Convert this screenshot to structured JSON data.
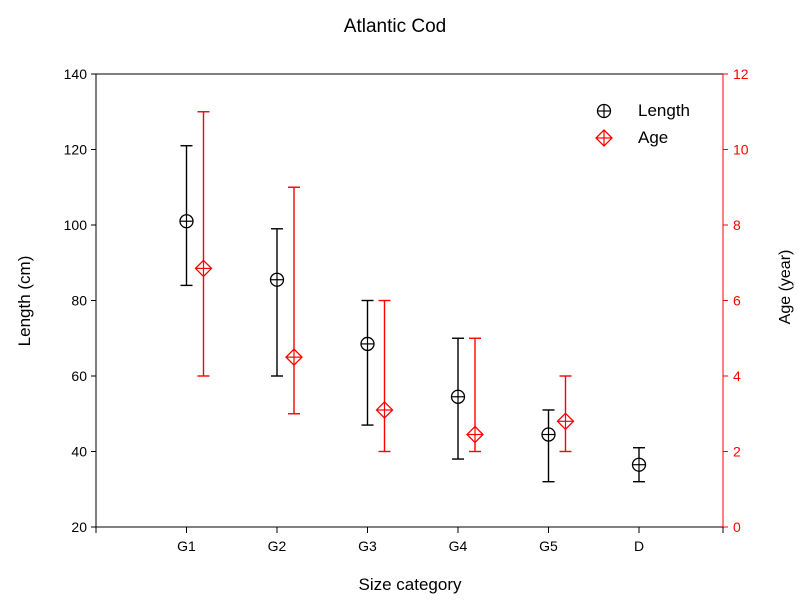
{
  "chart_data": {
    "type": "scatter",
    "title": "Atlantic Cod",
    "xlabel": "Size category",
    "ylabel": "Length (cm)",
    "y2label": "Age (year)",
    "categories": [
      "G1",
      "G2",
      "G3",
      "G4",
      "G5",
      "D"
    ],
    "ylim": [
      20,
      140
    ],
    "y2lim": [
      0,
      12
    ],
    "yticks": [
      "20",
      "40",
      "60",
      "80",
      "100",
      "120",
      "140"
    ],
    "y2ticks": [
      "0",
      "2",
      "4",
      "6",
      "8",
      "10",
      "12"
    ],
    "legend_position": "top-right",
    "grid": false,
    "series": [
      {
        "name": "Length",
        "axis": "left",
        "color": "#000000",
        "marker": "circle-plus",
        "points": [
          {
            "category": "G1",
            "y": 101,
            "low": 84,
            "high": 121
          },
          {
            "category": "G2",
            "y": 85.5,
            "low": 60,
            "high": 99
          },
          {
            "category": "G3",
            "y": 68.5,
            "low": 47,
            "high": 80
          },
          {
            "category": "G4",
            "y": 54.5,
            "low": 38,
            "high": 70
          },
          {
            "category": "G5",
            "y": 44.5,
            "low": 32,
            "high": 51
          },
          {
            "category": "D",
            "y": 36.5,
            "low": 32,
            "high": 41
          }
        ]
      },
      {
        "name": "Age",
        "axis": "right",
        "color": "#ff0000",
        "marker": "diamond-plus",
        "points": [
          {
            "category": "G1",
            "y": 6.85,
            "low": 4,
            "high": 11
          },
          {
            "category": "G2",
            "y": 4.5,
            "low": 3,
            "high": 9
          },
          {
            "category": "G3",
            "y": 3.1,
            "low": 2,
            "high": 6
          },
          {
            "category": "G4",
            "y": 2.45,
            "low": 2,
            "high": 5
          },
          {
            "category": "G5",
            "y": 2.8,
            "low": 2,
            "high": 4
          }
        ]
      }
    ]
  }
}
